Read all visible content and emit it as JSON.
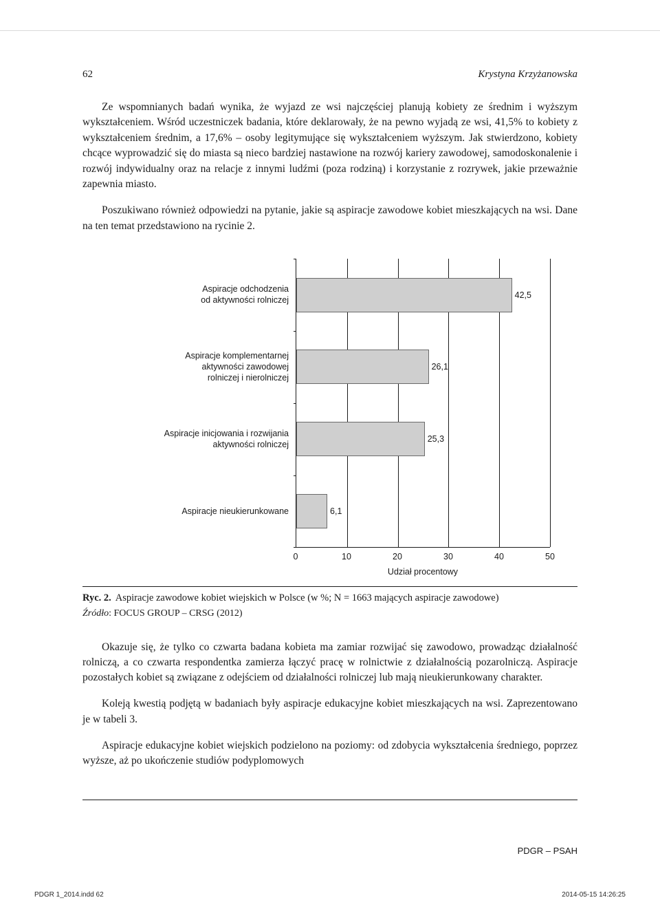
{
  "header": {
    "page_number": "62",
    "author": "Krystyna Krzyżanowska"
  },
  "paragraphs": {
    "p1": "Ze wspomnianych badań wynika, że wyjazd ze wsi najczęściej planują kobiety ze średnim i wyższym wykształceniem. Wśród uczestniczek badania, które deklarowały, że na pewno wyjadą ze wsi, 41,5% to kobiety z wykształceniem średnim, a 17,6% – osoby legitymujące się wykształceniem wyższym. Jak stwierdzono, kobiety chcące wyprowadzić się do miasta są nieco bardziej nastawione na rozwój kariery zawodowej, samodoskonalenie i rozwój indywidualny oraz na relacje z innymi ludźmi (poza rodziną) i korzystanie z rozrywek, jakie przeważnie zapewnia miasto.",
    "p2": "Poszukiwano również odpowiedzi na pytanie, jakie są aspiracje zawodowe kobiet mieszkających na wsi. Dane na ten temat przedstawiono na rycinie 2.",
    "p3": "Okazuje się, że tylko co czwarta badana kobieta ma zamiar rozwijać się zawodowo, prowadząc działalność rolniczą, a co czwarta respondentka zamierza łączyć pracę w rolnictwie z działalnością pozarolniczą. Aspiracje pozostałych kobiet są związane z odejściem od działalności rolniczej lub mają nieukierunkowany charakter.",
    "p4": "Koleją kwestią podjętą w badaniach były aspiracje edukacyjne kobiet mieszkających na wsi. Zaprezentowano je w tabeli 3.",
    "p5": "Aspiracje edukacyjne kobiet wiejskich podzielono na poziomy: od zdobycia wykształcenia średniego, poprzez wyższe, aż po ukończenie studiów podyplomowych"
  },
  "chart": {
    "type": "bar-horizontal",
    "x_axis_title": "Udział procentowy",
    "x_min": 0,
    "x_max": 50,
    "x_ticks": [
      0,
      10,
      20,
      30,
      40,
      50
    ],
    "bar_color": "#cfcfcf",
    "bar_border": "#6a6a6a",
    "axis_color": "#1a1a1a",
    "font_size_pt": 12,
    "categories": [
      {
        "label": "Aspiracje odchodzenia\nod aktywności rolniczej",
        "value": 42.5,
        "value_label": "42,5"
      },
      {
        "label": "Aspiracje komplementarnej\naktywności zawodowej\nrolniczej i nierolniczej",
        "value": 26.1,
        "value_label": "26,1"
      },
      {
        "label": "Aspiracje inicjowania i rozwijania\naktywności rolniczej",
        "value": 25.3,
        "value_label": "25,3"
      },
      {
        "label": "Aspiracje nieukierunkowane",
        "value": 6.1,
        "value_label": "6,1"
      }
    ]
  },
  "caption": {
    "label": "Ryc. 2.",
    "text": "Aspiracje zawodowe kobiet wiejskich w Polsce (w %; N = 1663 mających aspiracje zawodowe)"
  },
  "source": {
    "label": "Źródło",
    "text": ": FOCUS GROUP – CRSG (2012)"
  },
  "footer": {
    "journal": "PDGR – PSAH",
    "indd": "PDGR 1_2014.indd   62",
    "timestamp": "2014-05-15   14:26:25"
  }
}
